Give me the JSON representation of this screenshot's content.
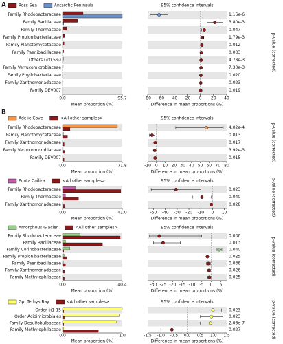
{
  "chart_data": [
    {
      "type": "extended-error-bar",
      "panel_label": "A",
      "categories": [
        "Family Rhodobacteraceae",
        "Family Bacillaceae",
        "Family Thermaceae",
        "Family Propionibacteriaceae",
        "Family Planctomycetaceae",
        "Family Paenibacillaceae",
        "Others (<0.5%)",
        "Family Verrucomicrobiaceae",
        "Family Phyllobacteriaceae",
        "Family Xanthomonadaceae",
        "Family DEV007"
      ],
      "series": [
        {
          "name": "Ross Sea",
          "color": "#8b1a1a",
          "values": [
            33,
            24,
            6.5,
            3.2,
            2.5,
            1.8,
            1.4,
            1.1,
            0.9,
            0.7,
            0.6
          ]
        },
        {
          "name": "Antarctic Peninsula",
          "color": "#6a8fc7",
          "values": [
            95.7,
            2,
            0.5,
            0.3,
            0.2,
            0.2,
            0.3,
            0.1,
            0.1,
            0.1,
            0.1
          ]
        }
      ],
      "xlabel": "Mean proportion (%)",
      "xlim": [
        0,
        95.7
      ],
      "xticks": [
        {
          "value": 0,
          "label": "0.0"
        },
        95.7
      ],
      "ci_title": "95% confidence intervals",
      "diff": {
        "values": [
          -62.7,
          22,
          6,
          2.9,
          2.3,
          1.6,
          1.1,
          1.0,
          0.8,
          0.6,
          0.5
        ],
        "lower": [
          -76,
          10,
          2,
          0.5,
          0.5,
          -0.5,
          0.2,
          0.3,
          0.1,
          0.1,
          0.1
        ],
        "upper": [
          -49,
          34,
          10,
          5.3,
          4.1,
          3.7,
          2.0,
          1.7,
          1.5,
          1.1,
          0.9
        ]
      },
      "diff_xlabel": "Difference in mean proportions (%)",
      "diff_xlim": [
        -80,
        40
      ],
      "diff_xticks": [
        -80,
        -60,
        -40,
        -20,
        0,
        20,
        40
      ],
      "p_values": [
        "1.16e-6",
        "3.80e-3",
        "0.047",
        "1.79e-3",
        "0.012",
        "0.033",
        "4.78e-3",
        "7.30e-3",
        "0.020",
        "0.023",
        "0.019"
      ],
      "p_label": "p-value (corrected)"
    },
    {
      "type": "extended-error-bar",
      "panel_label": "B",
      "categories": [
        "Family Rhodobacteraceae",
        "Family Planctomycetaceae",
        "Family Xanthomonadaceae",
        "Family Verrucomicrobiaceae",
        "Family DEV007"
      ],
      "series": [
        {
          "name": "Adelie Cove",
          "color": "#f79646",
          "values": [
            66,
            1,
            0.5,
            0.3,
            0.2
          ]
        },
        {
          "name": "<All other samples>",
          "color": "#8b1a1a",
          "values": [
            9,
            6,
            2,
            2.3,
            1.8
          ]
        }
      ],
      "xlabel": "Mean proportion (%)",
      "xlim": [
        0,
        71.8
      ],
      "xticks": [
        {
          "value": 0,
          "label": "0.0"
        },
        71.8
      ],
      "ci_title": "95% confidence intervals",
      "diff": {
        "values": [
          57,
          -5,
          -1.5,
          -2,
          -1.6
        ],
        "lower": [
          22,
          -8,
          -2.5,
          -3,
          -2.5
        ],
        "upper": [
          76,
          -2,
          -0.5,
          -1,
          -0.7
        ]
      },
      "diff_xlabel": "Difference in mean proportions (%)",
      "diff_xlim": [
        -10,
        80
      ],
      "diff_xticks": [
        -10,
        0,
        10,
        20,
        30,
        40,
        50,
        60,
        70,
        80
      ],
      "p_values": [
        "4.02e-4",
        "0.013",
        "0.017",
        "3.92e-3",
        "0.015"
      ],
      "p_label": "p-value (corrected)"
    },
    {
      "type": "extended-error-bar",
      "categories": [
        "Family Rhodobacteraceae",
        "Family Thermaceae",
        "Family Xanthomonadaceae"
      ],
      "series": [
        {
          "name": "Punta Cailiza",
          "color": "#c060a8",
          "values": [
            9,
            2,
            0.4
          ]
        },
        {
          "name": "<All other samples>",
          "color": "#8b1a1a",
          "values": [
            40,
            11,
            1.6
          ]
        }
      ],
      "xlabel": "Mean proportion (%)",
      "xlim": [
        0,
        41
      ],
      "xticks": [
        {
          "value": 0,
          "label": "0.0"
        },
        {
          "value": 41,
          "label": "41.0"
        }
      ],
      "ci_title": "95% confidence intervals",
      "diff": {
        "values": [
          -31,
          -9,
          -1.2
        ],
        "lower": [
          -52,
          -17,
          -2.3
        ],
        "upper": [
          -10,
          -1,
          -0.1
        ]
      },
      "diff_xlabel": "Difference in mean proportions (%)",
      "diff_xlim": [
        -55,
        12
      ],
      "diff_xticks": [
        -50,
        -40,
        -30,
        -20,
        -10,
        0,
        10
      ],
      "p_values": [
        "0.023",
        "0.040",
        "0.028"
      ],
      "p_label": "p-value (corrected)"
    },
    {
      "type": "extended-error-bar",
      "categories": [
        "Family Rhodobacteraceae",
        "Family Bacillaceae",
        "Family Corinobacteriaceae",
        "Family Propionibacteriaceae",
        "Family Paenibacillaceae",
        "Family Xanthomonadaceae",
        "Family Methylophilaceae"
      ],
      "series": [
        {
          "name": "Amorphous Glacier",
          "color": "#9bd28b",
          "values": [
            12,
            2,
            5,
            1,
            0.5,
            0.3,
            0.2
          ]
        },
        {
          "name": "<All other samples>",
          "color": "#8b1a1a",
          "values": [
            39,
            27,
            0.8,
            3,
            2,
            1.5,
            1.2
          ]
        }
      ],
      "xlabel": "Mean proportion (%)",
      "xlim": [
        0,
        40.4
      ],
      "xticks": [
        {
          "value": 0,
          "label": "0.0"
        },
        40.4
      ],
      "ci_title": "95% confidence intervals",
      "diff": {
        "values": [
          -27,
          -25,
          4.2,
          -2,
          -1.5,
          -1.2,
          -1
        ],
        "lower": [
          -32,
          -30,
          3,
          -3.2,
          -2.5,
          -2,
          -1.8
        ],
        "upper": [
          -5,
          -16,
          5.5,
          -0.8,
          -0.5,
          -0.4,
          -0.2
        ]
      },
      "diff_xlabel": "Difference in mean proportions (%)",
      "diff_xlim": [
        -33,
        8
      ],
      "diff_xticks": [
        -30,
        -25,
        -20,
        -15,
        -10,
        -5,
        0,
        5
      ],
      "p_values": [
        "0.036",
        "0.013",
        "0.040",
        "0.025",
        "0.036",
        "0.026",
        "0.025"
      ],
      "p_label": "p-value (corrected)"
    },
    {
      "type": "extended-error-bar",
      "categories": [
        "Order iii1-15",
        "Order Acidimicrobiales",
        "Family Desulfobulbaceae",
        "Family Methylophilaceae"
      ],
      "series": [
        {
          "name": "Gp. Tethys Bay",
          "color": "#ffff66",
          "values": [
            1.0,
            0.95,
            0.9,
            0.02
          ]
        },
        {
          "name": "<All other samples>",
          "color": "#8b1a1a",
          "values": [
            0.02,
            0.03,
            0.02,
            0.6
          ]
        }
      ],
      "xlabel": "Mean proportion (%)",
      "xlim": [
        0,
        1
      ],
      "xticks": [
        {
          "value": 0,
          "label": "0.0"
        },
        {
          "value": 1,
          "label": "1.0"
        }
      ],
      "ci_title": "95% confidence intervals",
      "diff": {
        "values": [
          0.98,
          0.92,
          0.88,
          -0.58
        ],
        "lower": [
          0.6,
          0.5,
          0.5,
          -1.0
        ],
        "upper": [
          1.3,
          1.35,
          1.25,
          -0.15
        ]
      },
      "diff_xlabel": "Difference in mean proportions (%)",
      "diff_xlim": [
        -1.5,
        1.5
      ],
      "diff_xticks": [
        -1.5,
        {
          "value": -1,
          "label": "-1.0"
        },
        -0.5,
        {
          "value": 0,
          "label": "0.0"
        },
        0.5,
        {
          "value": 1,
          "label": "1.0"
        },
        1.5
      ],
      "p_values": [
        "0.023",
        "0.023",
        "2.03e-7",
        "0.027"
      ],
      "p_label": "p-value (corrected)"
    }
  ]
}
